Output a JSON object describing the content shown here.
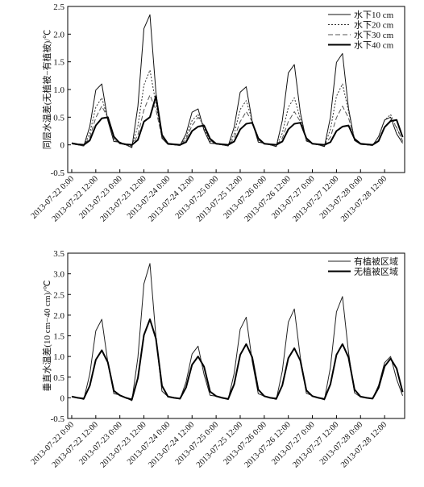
{
  "chart_data": [
    {
      "type": "line",
      "ylabel": "同层水温差(无植被−有植被)/℃",
      "x": [
        0,
        3,
        6,
        9,
        12,
        15,
        18,
        21,
        24,
        27,
        30,
        33,
        36,
        39,
        42,
        45,
        48,
        51,
        54,
        57,
        60,
        63,
        66,
        69,
        72,
        75,
        78,
        81,
        84,
        87,
        90,
        93,
        96,
        99,
        102,
        105,
        108,
        111,
        114,
        117,
        120,
        123,
        126,
        129,
        132,
        135,
        138,
        141,
        144,
        147,
        150,
        153,
        156,
        159,
        162,
        165
      ],
      "xlim": [
        -2,
        166
      ],
      "xticks": [
        {
          "value": 0,
          "label": "2013-07-22 0:00"
        },
        {
          "value": 12,
          "label": "2013-07-22 12:00"
        },
        {
          "value": 24,
          "label": "2013-07-23 0:00"
        },
        {
          "value": 36,
          "label": "2013-07-23 12:00"
        },
        {
          "value": 48,
          "label": "2013-07-24 0:00"
        },
        {
          "value": 60,
          "label": "2013-07-24 12:00"
        },
        {
          "value": 72,
          "label": "2013-07-25 0:00"
        },
        {
          "value": 84,
          "label": "2013-07-25 12:00"
        },
        {
          "value": 96,
          "label": "2013-07-26 0:00"
        },
        {
          "value": 108,
          "label": "2013-07-26 12:00"
        },
        {
          "value": 120,
          "label": "2013-07-27 0:00"
        },
        {
          "value": 132,
          "label": "2013-07-27 12:00"
        },
        {
          "value": 144,
          "label": "2013-07-28 0:00"
        },
        {
          "value": 156,
          "label": "2013-07-28 12:00"
        }
      ],
      "ylim": [
        -0.5,
        2.5
      ],
      "yticks": [
        -0.5,
        0,
        0.5,
        {
          "value": 1.0,
          "label": "1.0"
        },
        1.5,
        {
          "value": 2.0,
          "label": "2.0"
        },
        2.5
      ],
      "legend": "upper right",
      "series": [
        {
          "name": "水下10 cm",
          "color": "#111",
          "width": 1,
          "dash": "none",
          "values": [
            0.02,
            0,
            -0.02,
            0.33,
            0.99,
            1.1,
            0.44,
            0.06,
            0.05,
            0,
            -0.05,
            0.7,
            2.1,
            2.35,
            0.94,
            0.12,
            0.01,
            0,
            -0.01,
            0.2,
            0.59,
            0.65,
            0.26,
            0.03,
            0.02,
            0,
            -0.02,
            0.32,
            0.95,
            1.05,
            0.42,
            0.05,
            0.03,
            0,
            -0.03,
            0.44,
            1.3,
            1.45,
            0.58,
            0.07,
            0.03,
            0,
            -0.03,
            0.5,
            1.49,
            1.65,
            0.66,
            0.08,
            0.01,
            0,
            -0.01,
            0.15,
            0.45,
            0.5,
            0.2,
            0.03
          ]
        },
        {
          "name": "水下20 cm",
          "color": "#333",
          "width": 1,
          "dash": "2 2",
          "values": [
            0.02,
            0,
            -0.02,
            0.21,
            0.68,
            0.85,
            0.47,
            0.09,
            0.03,
            0,
            -0.03,
            0.34,
            1.08,
            1.35,
            0.74,
            0.14,
            0.01,
            0,
            -0.01,
            0.14,
            0.44,
            0.55,
            0.3,
            0.06,
            0.02,
            0,
            -0.02,
            0.2,
            0.64,
            0.8,
            0.44,
            0.08,
            0.02,
            0,
            -0.02,
            0.21,
            0.68,
            0.85,
            0.47,
            0.09,
            0.02,
            0,
            -0.02,
            0.28,
            0.88,
            1.1,
            0.61,
            0.11,
            0.01,
            0,
            -0.01,
            0.14,
            0.44,
            0.55,
            0.3,
            0.06
          ]
        },
        {
          "name": "水下30 cm",
          "color": "#555",
          "width": 1,
          "dash": "6 3",
          "values": [
            0.02,
            0,
            -0.01,
            0.14,
            0.49,
            0.7,
            0.49,
            0.11,
            0.03,
            0,
            -0.02,
            0.18,
            0.63,
            0.9,
            0.63,
            0.14,
            0.02,
            0,
            -0.01,
            0.1,
            0.35,
            0.5,
            0.35,
            0.08,
            0.02,
            0,
            -0.01,
            0.12,
            0.42,
            0.6,
            0.42,
            0.09,
            0.02,
            0,
            -0.01,
            0.12,
            0.42,
            0.6,
            0.42,
            0.09,
            0.02,
            0,
            -0.01,
            0.14,
            0.49,
            0.7,
            0.49,
            0.11,
            0.01,
            0,
            -0.01,
            0.09,
            0.32,
            0.45,
            0.32,
            0.07
          ]
        },
        {
          "name": "水下40 cm",
          "color": "#000",
          "width": 2,
          "dash": "none",
          "values": [
            0.03,
            0.01,
            0,
            0.08,
            0.35,
            0.48,
            0.5,
            0.15,
            0.03,
            0.01,
            0,
            0.09,
            0.42,
            0.5,
            0.88,
            0.18,
            0.02,
            0.01,
            0,
            0.05,
            0.25,
            0.33,
            0.35,
            0.11,
            0.02,
            0.01,
            0,
            0.06,
            0.28,
            0.38,
            0.4,
            0.12,
            0.02,
            0.01,
            0,
            0.06,
            0.28,
            0.38,
            0.4,
            0.12,
            0.02,
            0.01,
            0,
            0.05,
            0.25,
            0.33,
            0.35,
            0.11,
            0.02,
            0.01,
            0,
            0.07,
            0.32,
            0.43,
            0.45,
            0.14
          ]
        }
      ]
    },
    {
      "type": "line",
      "ylabel": "垂直水温差(10 cm−40 cm)/℃",
      "x": [
        0,
        3,
        6,
        9,
        12,
        15,
        18,
        21,
        24,
        27,
        30,
        33,
        36,
        39,
        42,
        45,
        48,
        51,
        54,
        57,
        60,
        63,
        66,
        69,
        72,
        75,
        78,
        81,
        84,
        87,
        90,
        93,
        96,
        99,
        102,
        105,
        108,
        111,
        114,
        117,
        120,
        123,
        126,
        129,
        132,
        135,
        138,
        141,
        144,
        147,
        150,
        153,
        156,
        159,
        162,
        165
      ],
      "xlim": [
        -2,
        166
      ],
      "xticks": [
        {
          "value": 0,
          "label": "2013-07-22 0:00"
        },
        {
          "value": 12,
          "label": "2013-07-22 12:00"
        },
        {
          "value": 24,
          "label": "2013-07-23 0:00"
        },
        {
          "value": 36,
          "label": "2013-07-23 12:00"
        },
        {
          "value": 48,
          "label": "2013-07-24 0:00"
        },
        {
          "value": 60,
          "label": "2013-07-24 12:00"
        },
        {
          "value": 72,
          "label": "2013-07-25 0:00"
        },
        {
          "value": 84,
          "label": "2013-07-25 12:00"
        },
        {
          "value": 96,
          "label": "2013-07-26 0:00"
        },
        {
          "value": 108,
          "label": "2013-07-26 12:00"
        },
        {
          "value": 120,
          "label": "2013-07-27 0:00"
        },
        {
          "value": 132,
          "label": "2013-07-27 12:00"
        },
        {
          "value": 144,
          "label": "2013-07-28 0:00"
        },
        {
          "value": 156,
          "label": "2013-07-28 12:00"
        }
      ],
      "ylim": [
        -0.5,
        3.5
      ],
      "yticks": [
        -0.5,
        0,
        0.5,
        {
          "value": 1.0,
          "label": "1.0"
        },
        1.5,
        {
          "value": 2.0,
          "label": "2.0"
        },
        2.5,
        {
          "value": 3.0,
          "label": "3.0"
        },
        3.5
      ],
      "legend": "upper right",
      "series": [
        {
          "name": "有植被区域",
          "color": "#222",
          "width": 1,
          "dash": "none",
          "values": [
            0.04,
            0,
            -0.04,
            0.57,
            1.62,
            1.9,
            0.86,
            0.1,
            0.07,
            0,
            -0.07,
            0.98,
            2.76,
            3.25,
            1.46,
            0.16,
            0.03,
            0,
            -0.03,
            0.38,
            1.06,
            1.25,
            0.56,
            0.06,
            0.04,
            0,
            -0.04,
            0.59,
            1.66,
            1.95,
            0.88,
            0.1,
            0.04,
            0,
            -0.04,
            0.65,
            1.83,
            2.15,
            0.97,
            0.11,
            0.05,
            0,
            -0.05,
            0.74,
            2.08,
            2.45,
            1.1,
            0.12,
            0.02,
            0,
            -0.02,
            0.3,
            0.85,
            1.0,
            0.45,
            0.05
          ]
        },
        {
          "name": "无植被区域",
          "color": "#000",
          "width": 2,
          "dash": "none",
          "values": [
            0.03,
            0,
            -0.02,
            0.29,
            0.92,
            1.15,
            0.86,
            0.17,
            0.06,
            0,
            -0.04,
            0.48,
            1.52,
            1.9,
            1.43,
            0.29,
            0.03,
            0,
            -0.02,
            0.25,
            0.8,
            1.0,
            0.75,
            0.15,
            0.04,
            0,
            -0.03,
            0.33,
            1.04,
            1.3,
            0.98,
            0.2,
            0.04,
            0,
            -0.02,
            0.3,
            0.96,
            1.2,
            0.9,
            0.18,
            0.04,
            0,
            -0.03,
            0.33,
            1.04,
            1.3,
            0.98,
            0.2,
            0.03,
            0,
            -0.02,
            0.24,
            0.76,
            0.95,
            0.71,
            0.14
          ]
        }
      ]
    }
  ]
}
